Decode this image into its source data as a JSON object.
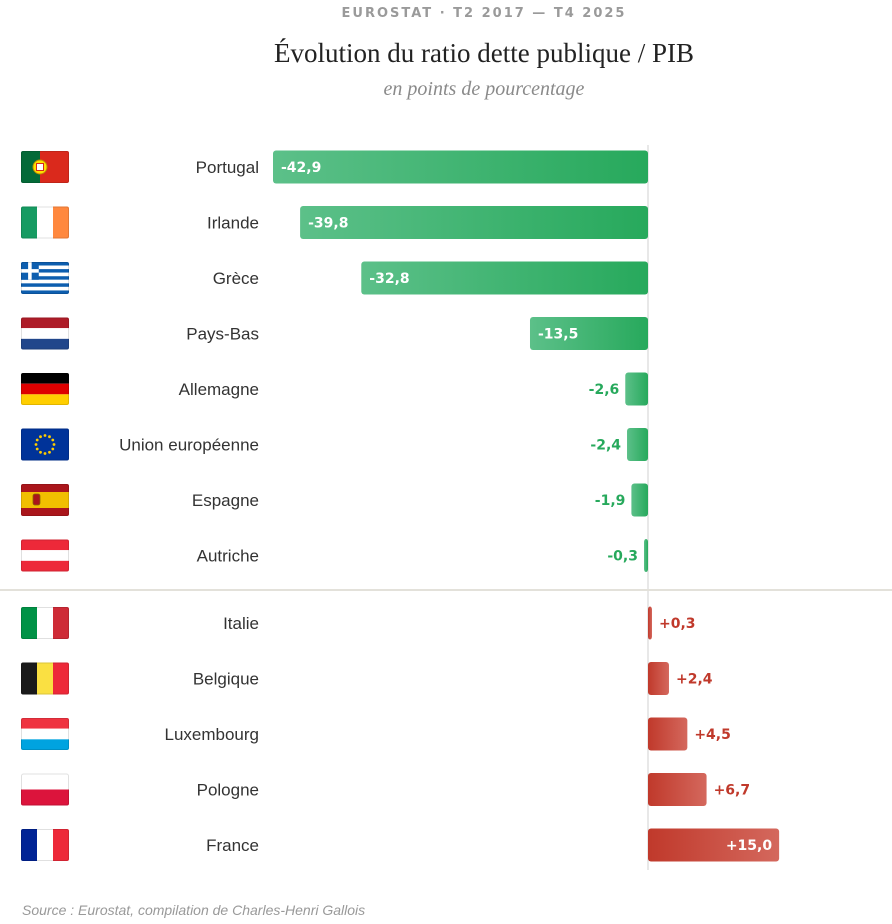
{
  "header": {
    "kicker": "EUROSTAT · T2 2017 — T4 2025",
    "title": "Évolution du ratio dette publique / PIB",
    "subtitle": "en points de pourcentage"
  },
  "footer": {
    "source": "Source : Eurostat, compilation de Charles-Henri Gallois"
  },
  "colors": {
    "negative_dark": "#27a95c",
    "negative_light": "#5cc089",
    "negative_text": "#27a95c",
    "positive_dark": "#c0392b",
    "positive_light": "#d4685d",
    "positive_text": "#c0392b"
  },
  "chart_data": {
    "type": "bar",
    "orientation": "horizontal",
    "title": "Évolution du ratio dette publique / PIB",
    "subtitle": "en points de pourcentage",
    "unit": "points de pourcentage",
    "xlim": [
      -42.9,
      15.0
    ],
    "categories": [
      "Portugal",
      "Irlande",
      "Grèce",
      "Pays-Bas",
      "Allemagne",
      "Union européenne",
      "Espagne",
      "Autriche",
      "Italie",
      "Belgique",
      "Luxembourg",
      "Pologne",
      "France"
    ],
    "values": [
      -42.9,
      -39.8,
      -32.8,
      -13.5,
      -2.6,
      -2.4,
      -1.9,
      -0.3,
      0.3,
      2.4,
      4.5,
      6.7,
      15.0
    ],
    "value_labels": [
      "-42,9",
      "-39,8",
      "-32,8",
      "-13,5",
      "-2,6",
      "-2,4",
      "-1,9",
      "-0,3",
      "+0,3",
      "+2,4",
      "+4,5",
      "+6,7",
      "+15,0"
    ],
    "flags": [
      "portugal-flag",
      "ireland-flag",
      "greece-flag",
      "netherlands-flag",
      "germany-flag",
      "eu-flag",
      "spain-flag",
      "austria-flag",
      "italy-flag",
      "belgium-flag",
      "luxembourg-flag",
      "poland-flag",
      "france-flag"
    ]
  }
}
